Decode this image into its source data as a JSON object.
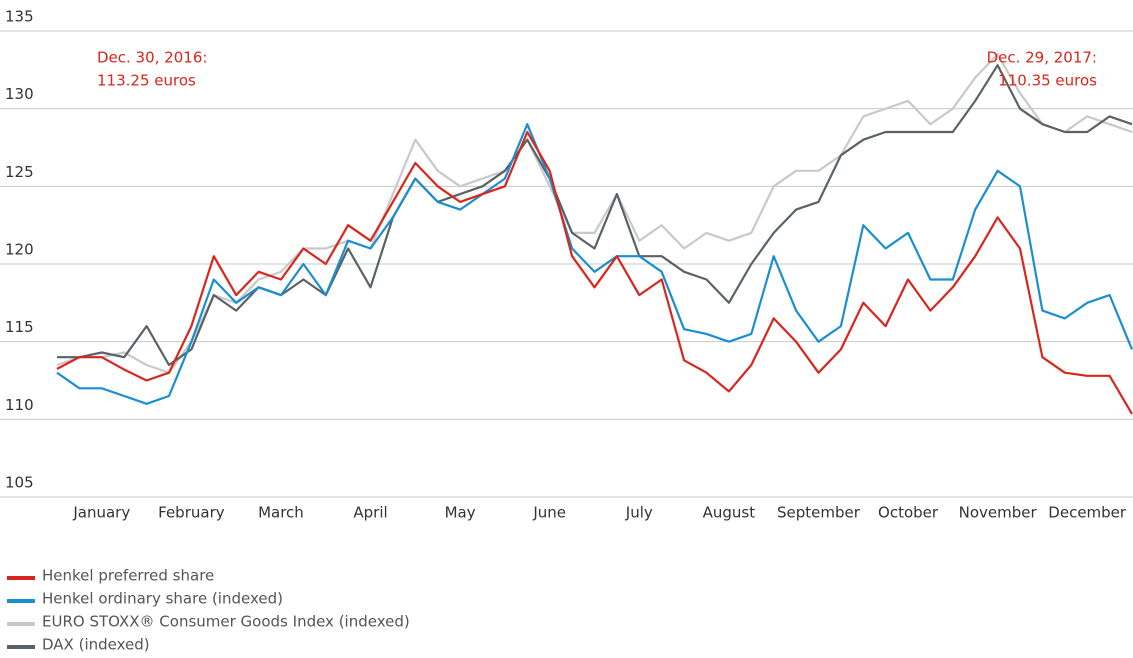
{
  "chart_data": {
    "type": "line",
    "x": [
      0,
      0.25,
      0.5,
      0.75,
      1,
      1.25,
      1.5,
      1.75,
      2,
      2.25,
      2.5,
      2.75,
      3,
      3.25,
      3.5,
      3.75,
      4,
      4.25,
      4.5,
      4.75,
      5,
      5.25,
      5.5,
      5.75,
      6,
      6.25,
      6.5,
      6.75,
      7,
      7.25,
      7.5,
      7.75,
      8,
      8.25,
      8.5,
      8.75,
      9,
      9.25,
      9.5,
      9.75,
      10,
      10.25,
      10.5,
      10.75,
      11,
      11.25,
      11.5,
      11.75,
      12
    ],
    "xlim": [
      0,
      12
    ],
    "xticks": [
      {
        "value": 0.5,
        "label": "January"
      },
      {
        "value": 1.5,
        "label": "February"
      },
      {
        "value": 2.5,
        "label": "March"
      },
      {
        "value": 3.5,
        "label": "April"
      },
      {
        "value": 4.5,
        "label": "May"
      },
      {
        "value": 5.5,
        "label": "June"
      },
      {
        "value": 6.5,
        "label": "July"
      },
      {
        "value": 7.5,
        "label": "August"
      },
      {
        "value": 8.5,
        "label": "September"
      },
      {
        "value": 9.5,
        "label": "October"
      },
      {
        "value": 10.5,
        "label": "November"
      },
      {
        "value": 11.5,
        "label": "December"
      }
    ],
    "ylim": [
      105,
      135
    ],
    "yticks": [
      105,
      110,
      115,
      120,
      125,
      130,
      135
    ],
    "grid": true,
    "series": [
      {
        "name": "Henkel preferred share",
        "color": "#d9261c",
        "values": [
          113.25,
          114,
          114,
          113.2,
          112.5,
          113,
          116,
          120.5,
          118,
          119.5,
          119,
          121,
          120,
          122.5,
          121.5,
          124,
          126.5,
          125,
          124,
          124.5,
          125,
          128.5,
          126,
          120.5,
          118.5,
          120.5,
          118,
          119,
          113.8,
          113,
          111.8,
          113.5,
          116.5,
          115,
          113,
          114.5,
          117.5,
          116,
          119,
          117,
          118.5,
          120.5,
          123,
          121,
          114,
          113,
          112.8,
          112.8,
          110.35
        ]
      },
      {
        "name": "Henkel ordinary share (indexed)",
        "color": "#1a8fd0",
        "values": [
          113,
          112,
          112,
          111.5,
          111,
          111.5,
          115,
          119,
          117.5,
          118.5,
          118,
          120,
          118,
          121.5,
          121,
          123,
          125.5,
          124,
          123.5,
          124.5,
          125.5,
          129,
          125.5,
          121,
          119.5,
          120.5,
          120.5,
          119.5,
          115.8,
          115.5,
          115,
          115.5,
          120.5,
          117,
          115,
          116,
          122.5,
          121,
          122,
          119,
          119,
          123.5,
          126,
          125,
          117,
          116.5,
          117.5,
          118,
          114.5
        ]
      },
      {
        "name": "EURO STOXX® Consumer Goods Index (indexed)",
        "color": "#c8c9cb",
        "values": [
          113.5,
          114,
          114,
          114.3,
          113.5,
          113,
          115,
          118,
          117.5,
          119,
          119.5,
          121,
          121,
          121.5,
          121,
          124.5,
          128,
          126,
          125,
          125.5,
          126,
          128,
          125,
          122,
          122,
          124.5,
          121.5,
          122.5,
          121,
          122,
          121.5,
          122,
          125,
          126,
          126,
          127,
          129.5,
          130,
          130.5,
          129,
          130,
          132,
          133.5,
          131,
          129,
          128.5,
          129.5,
          129,
          128.5
        ]
      },
      {
        "name": "DAX (indexed)",
        "color": "#5a6268",
        "values": [
          114,
          114,
          114.3,
          114,
          116,
          113.5,
          114.5,
          118,
          117,
          118.5,
          118,
          119,
          118,
          121,
          118.5,
          123,
          125.5,
          124,
          124.5,
          125,
          126,
          128,
          125.5,
          122,
          121,
          124.5,
          120.5,
          120.5,
          119.5,
          119,
          117.5,
          120,
          122,
          123.5,
          124,
          127,
          128,
          128.5,
          128.5,
          128.5,
          128.5,
          130.5,
          132.8,
          130,
          129,
          128.5,
          128.5,
          129.5,
          129
        ]
      }
    ],
    "annotations": [
      {
        "lines": [
          "Dec. 30, 2016:",
          "113.25 euros"
        ]
      },
      {
        "lines": [
          "Dec. 29, 2017:",
          "110.35 euros"
        ]
      }
    ]
  }
}
